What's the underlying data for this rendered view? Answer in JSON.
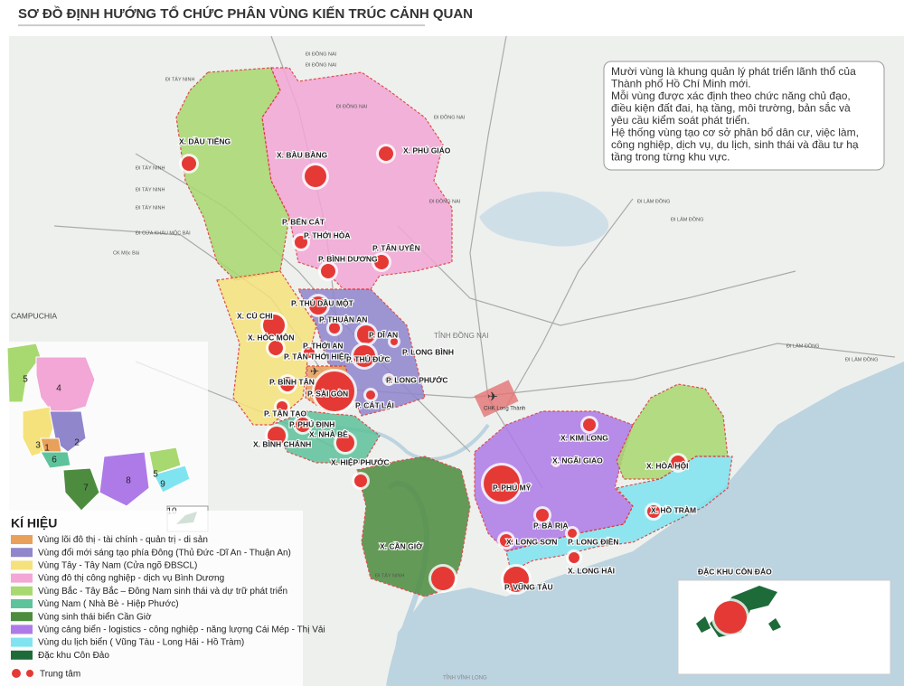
{
  "header": {
    "title": "SƠ ĐỒ ĐỊNH HƯỚNG TỔ CHỨC PHÂN VÙNG KIẾN TRÚC CẢNH QUAN"
  },
  "note": [
    "Mười vùng là khung quản lý phát triển lãnh thổ của",
    "Thành phố Hồ Chí Minh mới.",
    "Mỗi vùng được xác định theo chức năng chủ đạo,",
    "điều kiện đất đai, hạ tầng, môi trường, bản sắc và",
    "yêu cầu kiểm soát phát triển.",
    "Hệ thống vùng tạo cơ sở phân bổ dân cư, việc làm,",
    "công nghiệp, dịch vụ, du lịch, sinh thái và đầu tư hạ",
    "tầng trong từng khu vực."
  ],
  "places": [
    "X. DẦU TIẾNG",
    "X. BÀU BÀNG",
    "X. PHÚ GIÁO",
    "P. BẾN CÁT",
    "P. THỚI HÒA",
    "P. TÂN UYÊN",
    "P. BÌNH DƯƠNG",
    "P. THỦ DẦU MỘT",
    "X. CỦ CHI",
    "P. THUẬN AN",
    "X. HÓC MÔN",
    "P. DĨ AN",
    "P. THỚI AN",
    "P. TÂN THỚI HIỆP",
    "P. LONG BÌNH",
    "P. THỦ ĐỨC",
    "P. BÌNH TÂN",
    "P. SÀI GÒN",
    "P. LONG PHƯỚC",
    "P. CÁT LÁI",
    "P. TÂN TẠO",
    "P. PHÚ ĐỊNH",
    "X. BÌNH CHÁNH",
    "X. NHÀ BÈ",
    "X. HIỆP PHƯỚC",
    "X. KIM LONG",
    "X. NGÃI GIAO",
    "X. HÒA HỘI",
    "P. PHÚ MỸ",
    "X. HỒ TRÀM",
    "P. BÀ RỊA",
    "X. LONG SƠN",
    "P. LONG ĐIỀN",
    "X. CẦN GIỜ",
    "X. LONG HẢI",
    "P. VŨNG TÀU",
    "ĐẶC KHU CÔN ĐẢO"
  ],
  "regions": [
    "CAMPUCHIA",
    "TỈNH ĐỒNG NAI",
    "CHK Long Thành",
    "TỈNH VĨNH LONG"
  ],
  "roads": [
    "ĐI ĐỒNG NAI",
    "ĐI ĐỒNG NAI",
    "ĐI ĐỒNG NAI",
    "ĐI ĐỒNG NAI",
    "ĐI TÂY NINH",
    "ĐI TÂY NINH",
    "ĐI TÂY NINH",
    "ĐI TÂY NINH",
    "ĐI CỬA KHẨU MỘC BÀI",
    "CK Mộc Bài",
    "ĐI ĐỒNG NAI",
    "ĐI LÂM ĐỒNG",
    "ĐI LÂM ĐỒNG",
    "ĐI LÂM ĐỒNG",
    "ĐI LÂM ĐỒNG",
    "ĐI TÂY NINH"
  ],
  "inset": [
    "4",
    "5",
    "2",
    "3",
    "1",
    "6",
    "7",
    "8",
    "5",
    "9",
    "10"
  ],
  "legend": {
    "title": "KÍ HIỆU",
    "items": [
      {
        "label": "Vùng lõi đô thị - tài chính - quản trị - di sản",
        "color": "#e8a05a"
      },
      {
        "label": "Vùng đổi mới sáng tạo phía Đông (Thủ Đức -Dĩ An - Thuận An)",
        "color": "#8f86cc"
      },
      {
        "label": "Vùng Tây - Tây Nam (Cửa ngõ ĐBSCL)",
        "color": "#f6e27c"
      },
      {
        "label": "Vùng đô thị công nghiệp - dịch vụ Bình Dương",
        "color": "#f2a7d6"
      },
      {
        "label": "Vùng Bắc - Tây Bắc –  Đông Nam sinh thái và dự trữ phát triển",
        "color": "#a8d870"
      },
      {
        "label": "Vùng Nam ( Nhà Bè - Hiệp Phước)",
        "color": "#5ec39b"
      },
      {
        "label": "Vùng sinh thái biển Cần Giờ",
        "color": "#4d8c3f"
      },
      {
        "label": "Vùng cảng biển - logistics - công nghiệp - năng lượng Cái Mép - Thị Vải",
        "color": "#ae7ae8"
      },
      {
        "label": "Vùng du lịch biển ( Vũng Tàu - Long Hải - Hồ Tràm)",
        "color": "#7fe4f0"
      },
      {
        "label": "Đặc khu Côn Đảo",
        "color": "#1e6b3a"
      }
    ],
    "center": "Trung tâm"
  }
}
